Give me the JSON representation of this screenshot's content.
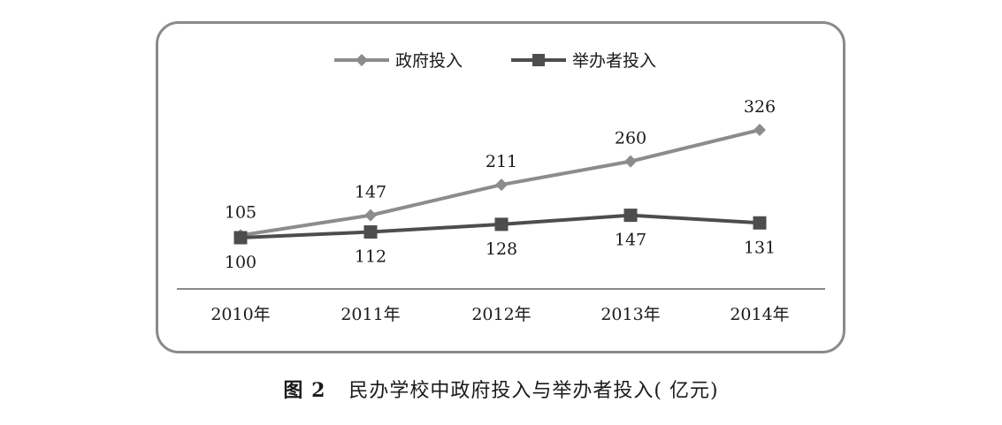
{
  "chart_data": {
    "type": "line",
    "categories": [
      "2010年",
      "2011年",
      "2012年",
      "2013年",
      "2014年"
    ],
    "series": [
      {
        "name": "政府投入",
        "values": [
          105,
          147,
          211,
          260,
          326
        ],
        "color": "#8c8c8c",
        "marker": "diamond"
      },
      {
        "name": "举办者投入",
        "values": [
          100,
          112,
          128,
          147,
          131
        ],
        "color": "#4d4d4d",
        "marker": "square"
      }
    ],
    "ylim": [
      60,
      340
    ],
    "legend": "top-center",
    "grid": false
  },
  "caption": {
    "figure_label": "图 2",
    "text": "民办学校中政府投入与举办者投入( 亿元)"
  }
}
